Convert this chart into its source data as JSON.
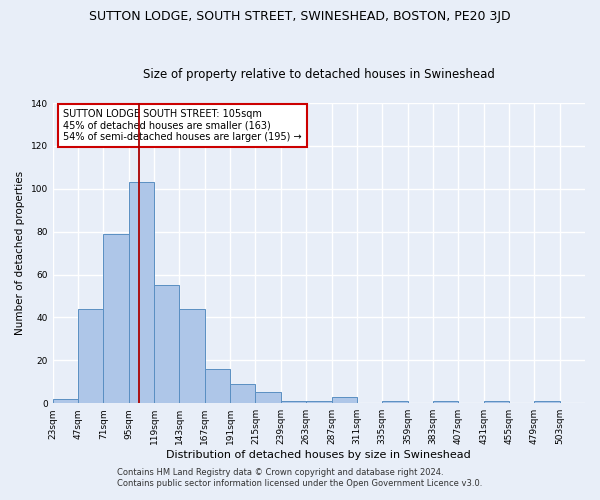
{
  "title": "SUTTON LODGE, SOUTH STREET, SWINESHEAD, BOSTON, PE20 3JD",
  "subtitle": "Size of property relative to detached houses in Swineshead",
  "xlabel": "Distribution of detached houses by size in Swineshead",
  "ylabel": "Number of detached properties",
  "bar_edges": [
    23,
    47,
    71,
    95,
    119,
    143,
    167,
    191,
    215,
    239,
    263,
    287,
    311,
    335,
    359,
    383,
    407,
    431,
    455,
    479,
    503
  ],
  "bar_values": [
    2,
    44,
    79,
    103,
    55,
    44,
    16,
    9,
    5,
    1,
    1,
    3,
    0,
    1,
    0,
    1,
    0,
    1,
    0,
    1
  ],
  "bar_color": "#aec6e8",
  "bar_edge_color": "#5a8fc2",
  "red_line_x": 105,
  "ylim": [
    0,
    140
  ],
  "yticks": [
    0,
    20,
    40,
    60,
    80,
    100,
    120,
    140
  ],
  "annotation_text": "SUTTON LODGE SOUTH STREET: 105sqm\n45% of detached houses are smaller (163)\n54% of semi-detached houses are larger (195) →",
  "annotation_box_color": "#ffffff",
  "annotation_box_edge_color": "#cc0000",
  "footer_line1": "Contains HM Land Registry data © Crown copyright and database right 2024.",
  "footer_line2": "Contains public sector information licensed under the Open Government Licence v3.0.",
  "background_color": "#e8eef8",
  "axes_background_color": "#e8eef8",
  "grid_color": "#ffffff",
  "title_fontsize": 9,
  "subtitle_fontsize": 8.5
}
